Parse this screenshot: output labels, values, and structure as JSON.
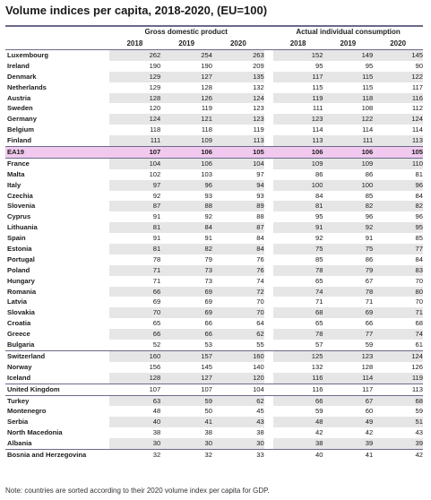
{
  "title": "Volume indices per capita, 2018-2020, (EU=100)",
  "groups": {
    "gdp": "Gross domestic product",
    "aic": "Actual individual consumption"
  },
  "years": [
    "2018",
    "2019",
    "2020"
  ],
  "rows": [
    {
      "name": "Luxembourg",
      "v": [
        "262",
        "254",
        "263",
        "152",
        "149",
        "145"
      ]
    },
    {
      "name": "Ireland",
      "v": [
        "190",
        "190",
        "209",
        "95",
        "95",
        "90"
      ]
    },
    {
      "name": "Denmark",
      "v": [
        "129",
        "127",
        "135",
        "117",
        "115",
        "122"
      ]
    },
    {
      "name": "Netherlands",
      "v": [
        "129",
        "128",
        "132",
        "115",
        "115",
        "117"
      ]
    },
    {
      "name": "Austria",
      "v": [
        "128",
        "126",
        "124",
        "119",
        "118",
        "116"
      ]
    },
    {
      "name": "Sweden",
      "v": [
        "120",
        "119",
        "123",
        "111",
        "108",
        "112"
      ]
    },
    {
      "name": "Germany",
      "v": [
        "124",
        "121",
        "123",
        "123",
        "122",
        "124"
      ]
    },
    {
      "name": "Belgium",
      "v": [
        "118",
        "118",
        "119",
        "114",
        "114",
        "114"
      ]
    },
    {
      "name": "Finland",
      "v": [
        "111",
        "109",
        "113",
        "113",
        "111",
        "113"
      ]
    },
    {
      "name": "EA19",
      "v": [
        "107",
        "106",
        "105",
        "106",
        "106",
        "105"
      ],
      "highlight": true
    },
    {
      "name": "France",
      "v": [
        "104",
        "106",
        "104",
        "109",
        "109",
        "110"
      ]
    },
    {
      "name": "Malta",
      "v": [
        "102",
        "103",
        "97",
        "86",
        "86",
        "81"
      ]
    },
    {
      "name": "Italy",
      "v": [
        "97",
        "96",
        "94",
        "100",
        "100",
        "96"
      ]
    },
    {
      "name": "Czechia",
      "v": [
        "92",
        "93",
        "93",
        "84",
        "85",
        "84"
      ]
    },
    {
      "name": "Slovenia",
      "v": [
        "87",
        "88",
        "89",
        "81",
        "82",
        "82"
      ]
    },
    {
      "name": "Cyprus",
      "v": [
        "91",
        "92",
        "88",
        "95",
        "96",
        "96"
      ]
    },
    {
      "name": "Lithuania",
      "v": [
        "81",
        "84",
        "87",
        "91",
        "92",
        "95"
      ]
    },
    {
      "name": "Spain",
      "v": [
        "91",
        "91",
        "84",
        "92",
        "91",
        "85"
      ]
    },
    {
      "name": "Estonia",
      "v": [
        "81",
        "82",
        "84",
        "75",
        "75",
        "77"
      ]
    },
    {
      "name": "Portugal",
      "v": [
        "78",
        "79",
        "76",
        "85",
        "86",
        "84"
      ]
    },
    {
      "name": "Poland",
      "v": [
        "71",
        "73",
        "76",
        "78",
        "79",
        "83"
      ]
    },
    {
      "name": "Hungary",
      "v": [
        "71",
        "73",
        "74",
        "65",
        "67",
        "70"
      ]
    },
    {
      "name": "Romania",
      "v": [
        "66",
        "69",
        "72",
        "74",
        "78",
        "80"
      ]
    },
    {
      "name": "Latvia",
      "v": [
        "69",
        "69",
        "70",
        "71",
        "71",
        "70"
      ]
    },
    {
      "name": "Slovakia",
      "v": [
        "70",
        "69",
        "70",
        "68",
        "69",
        "71"
      ]
    },
    {
      "name": "Croatia",
      "v": [
        "65",
        "66",
        "64",
        "65",
        "66",
        "68"
      ]
    },
    {
      "name": "Greece",
      "v": [
        "66",
        "66",
        "62",
        "78",
        "77",
        "74"
      ]
    },
    {
      "name": "Bulgaria",
      "v": [
        "52",
        "53",
        "55",
        "57",
        "59",
        "61"
      ]
    },
    {
      "name": "Switzerland",
      "v": [
        "160",
        "157",
        "160",
        "125",
        "123",
        "124"
      ],
      "sep": true
    },
    {
      "name": "Norway",
      "v": [
        "156",
        "145",
        "140",
        "132",
        "128",
        "126"
      ]
    },
    {
      "name": "Iceland",
      "v": [
        "128",
        "127",
        "120",
        "116",
        "114",
        "119"
      ]
    },
    {
      "name": "United Kingdom",
      "v": [
        "107",
        "107",
        "104",
        "116",
        "117",
        "113"
      ],
      "sep": true
    },
    {
      "name": "Turkey",
      "v": [
        "63",
        "59",
        "62",
        "66",
        "67",
        "68"
      ],
      "sep": true
    },
    {
      "name": "Montenegro",
      "v": [
        "48",
        "50",
        "45",
        "59",
        "60",
        "59"
      ]
    },
    {
      "name": "Serbia",
      "v": [
        "40",
        "41",
        "43",
        "48",
        "49",
        "51"
      ]
    },
    {
      "name": "North Macedonia",
      "v": [
        "38",
        "38",
        "38",
        "42",
        "42",
        "43"
      ]
    },
    {
      "name": "Albania",
      "v": [
        "30",
        "30",
        "30",
        "38",
        "39",
        "39"
      ]
    },
    {
      "name": "Bosnia and Herzegovina",
      "v": [
        "32",
        "32",
        "33",
        "40",
        "41",
        "42"
      ],
      "sep": true
    }
  ],
  "note": "Note: countries are sorted according to their 2020 volume index per capita for GDP."
}
